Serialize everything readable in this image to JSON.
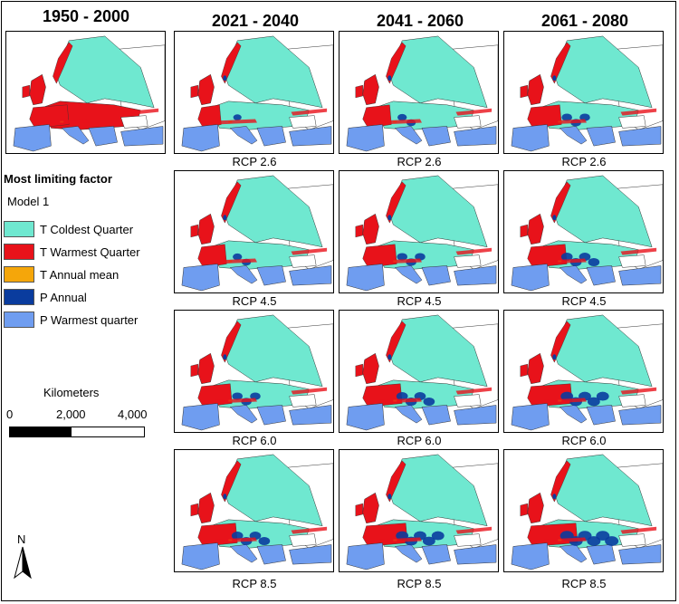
{
  "periods": [
    "1950 - 2000",
    "2021 - 2040",
    "2041 - 2060",
    "2061 - 2080"
  ],
  "scenarios": [
    "RCP 2.6",
    "RCP 4.5",
    "RCP 6.0",
    "RCP 8.5"
  ],
  "legend": {
    "title": "Most limiting factor",
    "model": "Model 1",
    "items": [
      {
        "label": "T Coldest Quarter",
        "color": "#6fe8d0"
      },
      {
        "label": "T Warmest Quarter",
        "color": "#e8121a"
      },
      {
        "label": "T Annual mean",
        "color": "#f5a60a"
      },
      {
        "label": "P Annual",
        "color": "#0a3c9e"
      },
      {
        "label": "P Warmest quarter",
        "color": "#6f9df0"
      }
    ]
  },
  "scale": {
    "title": "Kilometers",
    "ticks": [
      "0",
      "2,000",
      "4,000"
    ]
  },
  "north_label": "N"
}
